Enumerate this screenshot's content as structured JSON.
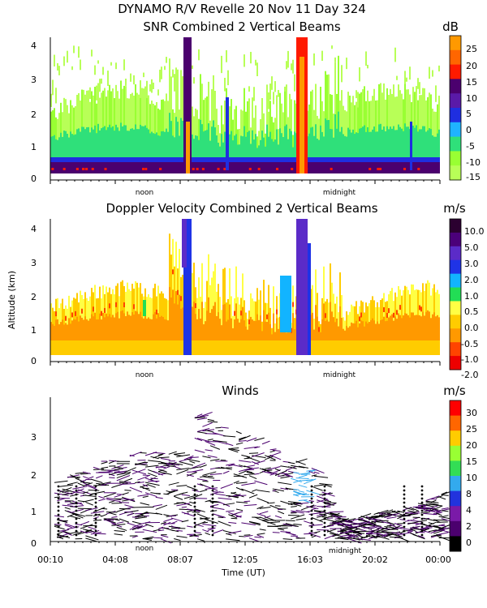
{
  "header": {
    "title_line1": "DYNAMO R/V Revelle  20 Nov 11 Day 324"
  },
  "shared": {
    "ylabel": "Altitude (km)",
    "xlabel": "Time (UT)",
    "noon_label": "noon",
    "midnight_label": "midnight",
    "x_ticks": [
      "00:10",
      "04:08",
      "08:07",
      "12:05",
      "16:03",
      "20:02",
      "00:00"
    ]
  },
  "chart_data": [
    {
      "type": "heatmap",
      "title": "SNR Combined 2 Vertical Beams",
      "xlabel": "",
      "ylabel": "",
      "ylim": [
        0,
        4.3
      ],
      "y_ticks": [
        "0",
        "1",
        "2",
        "3",
        "4"
      ],
      "colorbar_unit": "dB",
      "colorbar_ticks": [
        "25",
        "20",
        "15",
        "10",
        "5",
        "0",
        "-5",
        "-10",
        "-15"
      ],
      "colorbar_colors": [
        "#ff9900",
        "#ff6600",
        "#ff1a00",
        "#4b006e",
        "#5a1aa8",
        "#1f2ee0",
        "#1fb3ff",
        "#2fe07a",
        "#99ff33",
        "#b8ff57"
      ]
    },
    {
      "type": "heatmap",
      "title": "Doppler Velocity Combined 2 Vertical Beams",
      "xlabel": "",
      "ylabel": "Altitude (km)",
      "ylim": [
        0,
        4.3
      ],
      "y_ticks": [
        "0",
        "1",
        "2",
        "3",
        "4"
      ],
      "colorbar_unit": "m/s",
      "colorbar_ticks": [
        "10.0",
        "5.0",
        "3.0",
        "2.0",
        "1.0",
        "0.5",
        "0.0",
        "-0.5",
        "-1.0",
        "-2.0"
      ],
      "colorbar_colors": [
        "#2b0030",
        "#4b007a",
        "#5b2bc8",
        "#1f33e6",
        "#12b4ff",
        "#22dd55",
        "#ffff44",
        "#ffcc00",
        "#ff9900",
        "#ff4400",
        "#ee0000"
      ]
    },
    {
      "type": "scatter",
      "title": "Winds",
      "xlabel": "Time (UT)",
      "ylabel": "",
      "ylim": [
        0,
        4
      ],
      "y_ticks": [
        "0",
        "1",
        "2",
        "3"
      ],
      "colorbar_unit": "m/s",
      "colorbar_ticks": [
        "30",
        "25",
        "20",
        "15",
        "10",
        "8",
        "4",
        "2",
        "0"
      ],
      "colorbar_colors": [
        "#ff0000",
        "#ff6600",
        "#ffcc00",
        "#99ff33",
        "#33dd55",
        "#33aaee",
        "#2233dd",
        "#7a1aa8",
        "#4b006e",
        "#000000"
      ]
    }
  ]
}
